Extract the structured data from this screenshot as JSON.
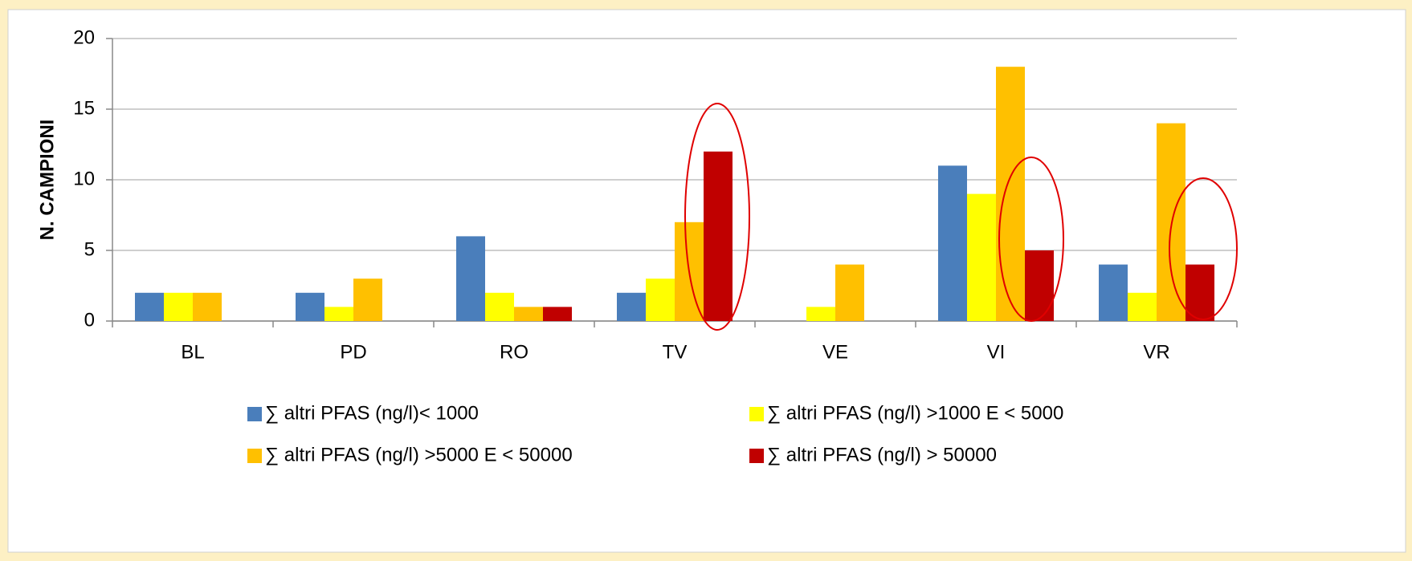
{
  "chart_data": {
    "type": "bar",
    "y_label": "N. CAMPIONI",
    "categories": [
      "BL",
      "PD",
      "RO",
      "TV",
      "VE",
      "VI",
      "VR"
    ],
    "series": [
      {
        "name": "∑ altri PFAS (ng/l)< 1000",
        "color": "#4a7ebb",
        "values": [
          2,
          2,
          6,
          2,
          0,
          11,
          4
        ]
      },
      {
        "name": "∑ altri PFAS (ng/l) >1000 E < 5000",
        "color": "#ffff00",
        "values": [
          2,
          1,
          2,
          3,
          1,
          9,
          2
        ]
      },
      {
        "name": "∑ altri PFAS (ng/l) >5000 E < 50000",
        "color": "#ffc000",
        "values": [
          2,
          3,
          1,
          7,
          4,
          18,
          14
        ]
      },
      {
        "name": "∑ altri PFAS (ng/l) > 50000",
        "color": "#c00000",
        "values": [
          0,
          0,
          1,
          12,
          0,
          5,
          4
        ]
      }
    ],
    "ylim": [
      0,
      20
    ],
    "yticks": [
      0,
      5,
      10,
      15,
      20
    ],
    "grid": true,
    "legend": "bottom"
  }
}
